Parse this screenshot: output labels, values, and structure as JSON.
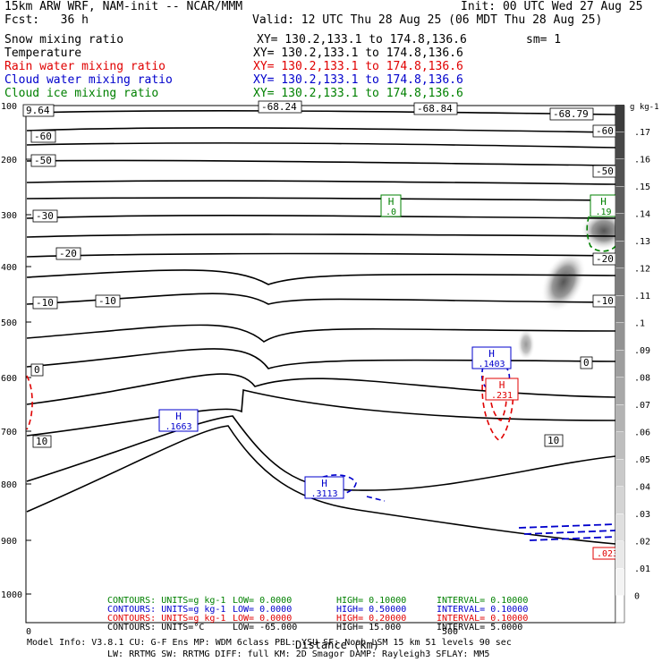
{
  "header": {
    "model": "15km ARW WRF, NAM-init -- NCAR/MMM",
    "init": "Init: 00 UTC Wed 27 Aug 25",
    "fcst": "Fcst:   36 h",
    "valid": "Valid: 12 UTC Thu 28 Aug 25 (06 MDT Thu 28 Aug 25)",
    "fields": [
      {
        "name": "Snow mixing ratio",
        "xy": "XY= 130.2,133.1 to 174.8,136.6",
        "extra": "sm= 1",
        "color": "#000000"
      },
      {
        "name": "Temperature",
        "xy": "XY= 130.2,133.1 to 174.8,136.6",
        "extra": "",
        "color": "#000000"
      },
      {
        "name": "Rain water mixing ratio",
        "xy": "XY= 130.2,133.1 to 174.8,136.6",
        "extra": "",
        "color": "#e00000"
      },
      {
        "name": "Cloud water mixing ratio",
        "xy": "XY= 130.2,133.1 to 174.8,136.6",
        "extra": "",
        "color": "#0000cc"
      },
      {
        "name": "Cloud ice mixing ratio",
        "xy": "XY= 130.2,133.1 to 174.8,136.6",
        "extra": "",
        "color": "#008000"
      }
    ]
  },
  "chart_data": {
    "type": "cross-section contour",
    "xlabel": "Distance (km)",
    "x_ticks": [
      "0",
      "500"
    ],
    "y_ticks": [
      "100",
      "200",
      "300",
      "400",
      "500",
      "600",
      "700",
      "800",
      "900",
      "1000"
    ],
    "y_scale": "log-pressure",
    "temperature_contours": {
      "units": "°C",
      "labels": [
        "-68.24",
        "-68.84",
        "-68.79",
        "-60",
        "-60",
        "-50",
        "-50",
        "-30",
        "-20",
        "-20",
        "-10",
        "-10",
        "-10",
        "0",
        "0",
        "10",
        "10",
        "9.64"
      ],
      "low": -65.0,
      "high": 15.0,
      "interval": 5.0
    },
    "highs": [
      {
        "color": "#008000",
        "value": ".0"
      },
      {
        "color": "#008000",
        "value": ".19"
      },
      {
        "color": "#0000cc",
        "value": ".1663"
      },
      {
        "color": "#0000cc",
        "value": ".3113"
      },
      {
        "color": "#0000cc",
        "value": ".1403"
      },
      {
        "color": "#e00000",
        "value": ".231"
      }
    ],
    "colorbar": {
      "units": "g kg-1",
      "labels": [
        ".17",
        ".16",
        ".15",
        ".14",
        ".13",
        ".12",
        ".11",
        ".1",
        ".09",
        ".08",
        ".07",
        ".06",
        ".05",
        ".04",
        ".03",
        ".02",
        ".01",
        "0"
      ]
    },
    "surface_label": ".023"
  },
  "contour_info": [
    {
      "color": "#008000",
      "units": "CONTOURS:  UNITS=g kg-1",
      "low": "LOW=  0.0000",
      "high": "HIGH= 0.10000",
      "interval": "INTERVAL=  0.10000"
    },
    {
      "color": "#0000cc",
      "units": "CONTOURS:  UNITS=g kg-1",
      "low": "LOW=  0.0000",
      "high": "HIGH= 0.50000",
      "interval": "INTERVAL=  0.10000"
    },
    {
      "color": "#e00000",
      "units": "CONTOURS:  UNITS=g kg-1",
      "low": "LOW=  0.0000",
      "high": "HIGH= 0.20000",
      "interval": "INTERVAL=  0.10000"
    },
    {
      "color": "#000000",
      "units": "CONTOURS:  UNITS=°C",
      "low": "LOW= -65.000",
      "high": "HIGH= 15.000",
      "interval": "INTERVAL= 5.0000"
    }
  ],
  "footer": {
    "line1": "Model Info: V3.8.1    CU: G-F Ens  MP: WDM 6class  PBL: YSU      SF: Noah LSM     15 km    51 levels   90 sec",
    "line2": "LW: RRTMG   SW: RRTMG   DIFF: full    KM: 2D Smagor DAMP: Rayleigh3    SFLAY: MM5"
  }
}
